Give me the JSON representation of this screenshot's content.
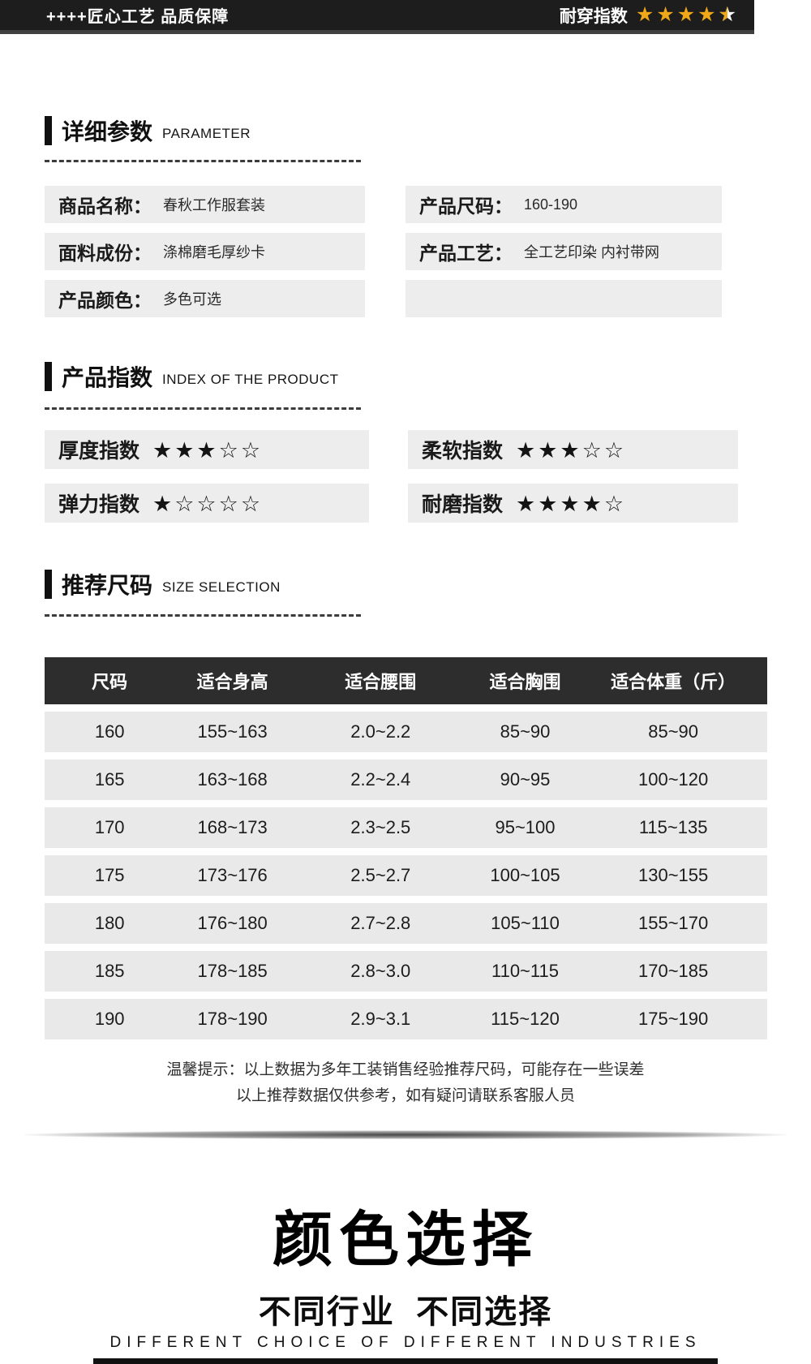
{
  "topbar": {
    "left_text": "++++匠心工艺 品质保障",
    "rating_label": "耐穿指数",
    "rating_full_stars": 4,
    "rating_half_star": true
  },
  "section_params": {
    "title": "详细参数",
    "subtitle": "PARAMETER"
  },
  "params_left": [
    {
      "label": "商品名称：",
      "value": "春秋工作服套装"
    },
    {
      "label": "面料成份：",
      "value": "涤棉磨毛厚纱卡"
    },
    {
      "label": "产品颜色：",
      "value": "多色可选"
    }
  ],
  "params_right": [
    {
      "label": "产品尺码：",
      "value": "160-190"
    },
    {
      "label": "产品工艺：",
      "value": "全工艺印染 内衬带网"
    },
    {
      "label": "",
      "value": ""
    }
  ],
  "section_index": {
    "title": "产品指数",
    "subtitle": "INDEX OF THE PRODUCT"
  },
  "indexes": [
    {
      "label": "厚度指数",
      "stars": 3
    },
    {
      "label": "柔软指数",
      "stars": 3
    },
    {
      "label": "弹力指数",
      "stars": 1
    },
    {
      "label": "耐磨指数",
      "stars": 4
    }
  ],
  "stars_max": 5,
  "section_size": {
    "title": "推荐尺码",
    "subtitle": "SIZE SELECTION"
  },
  "size_table": {
    "headers": [
      "尺码",
      "适合身高",
      "适合腰围",
      "适合胸围",
      "适合体重（斤）"
    ],
    "rows": [
      [
        "160",
        "155~163",
        "2.0~2.2",
        "85~90",
        "85~90"
      ],
      [
        "165",
        "163~168",
        "2.2~2.4",
        "90~95",
        "100~120"
      ],
      [
        "170",
        "168~173",
        "2.3~2.5",
        "95~100",
        "115~135"
      ],
      [
        "175",
        "173~176",
        "2.5~2.7",
        "100~105",
        "130~155"
      ],
      [
        "180",
        "176~180",
        "2.7~2.8",
        "105~110",
        "155~170"
      ],
      [
        "185",
        "178~185",
        "2.8~3.0",
        "110~115",
        "170~185"
      ],
      [
        "190",
        "178~190",
        "2.9~3.1",
        "115~120",
        "175~190"
      ]
    ]
  },
  "notice": {
    "line1": "温馨提示：以上数据为多年工装销售经验推荐尺码，可能存在一些误差",
    "line2": "以上推荐数据仅供参考，如有疑问请联系客服人员"
  },
  "color_section": {
    "title": "颜色选择",
    "subtitle": "不同行业  不同选择",
    "subtitle_en": "DIFFERENT CHOICE OF DIFFERENT INDUSTRIES"
  },
  "colors": {
    "star_gold": "#f0a818",
    "topbar_bg": "#1d1d1d",
    "gray_box_bg": "#ededed",
    "table_header_bg": "#2d2d2d",
    "table_row_bg": "#e9e9e9"
  }
}
